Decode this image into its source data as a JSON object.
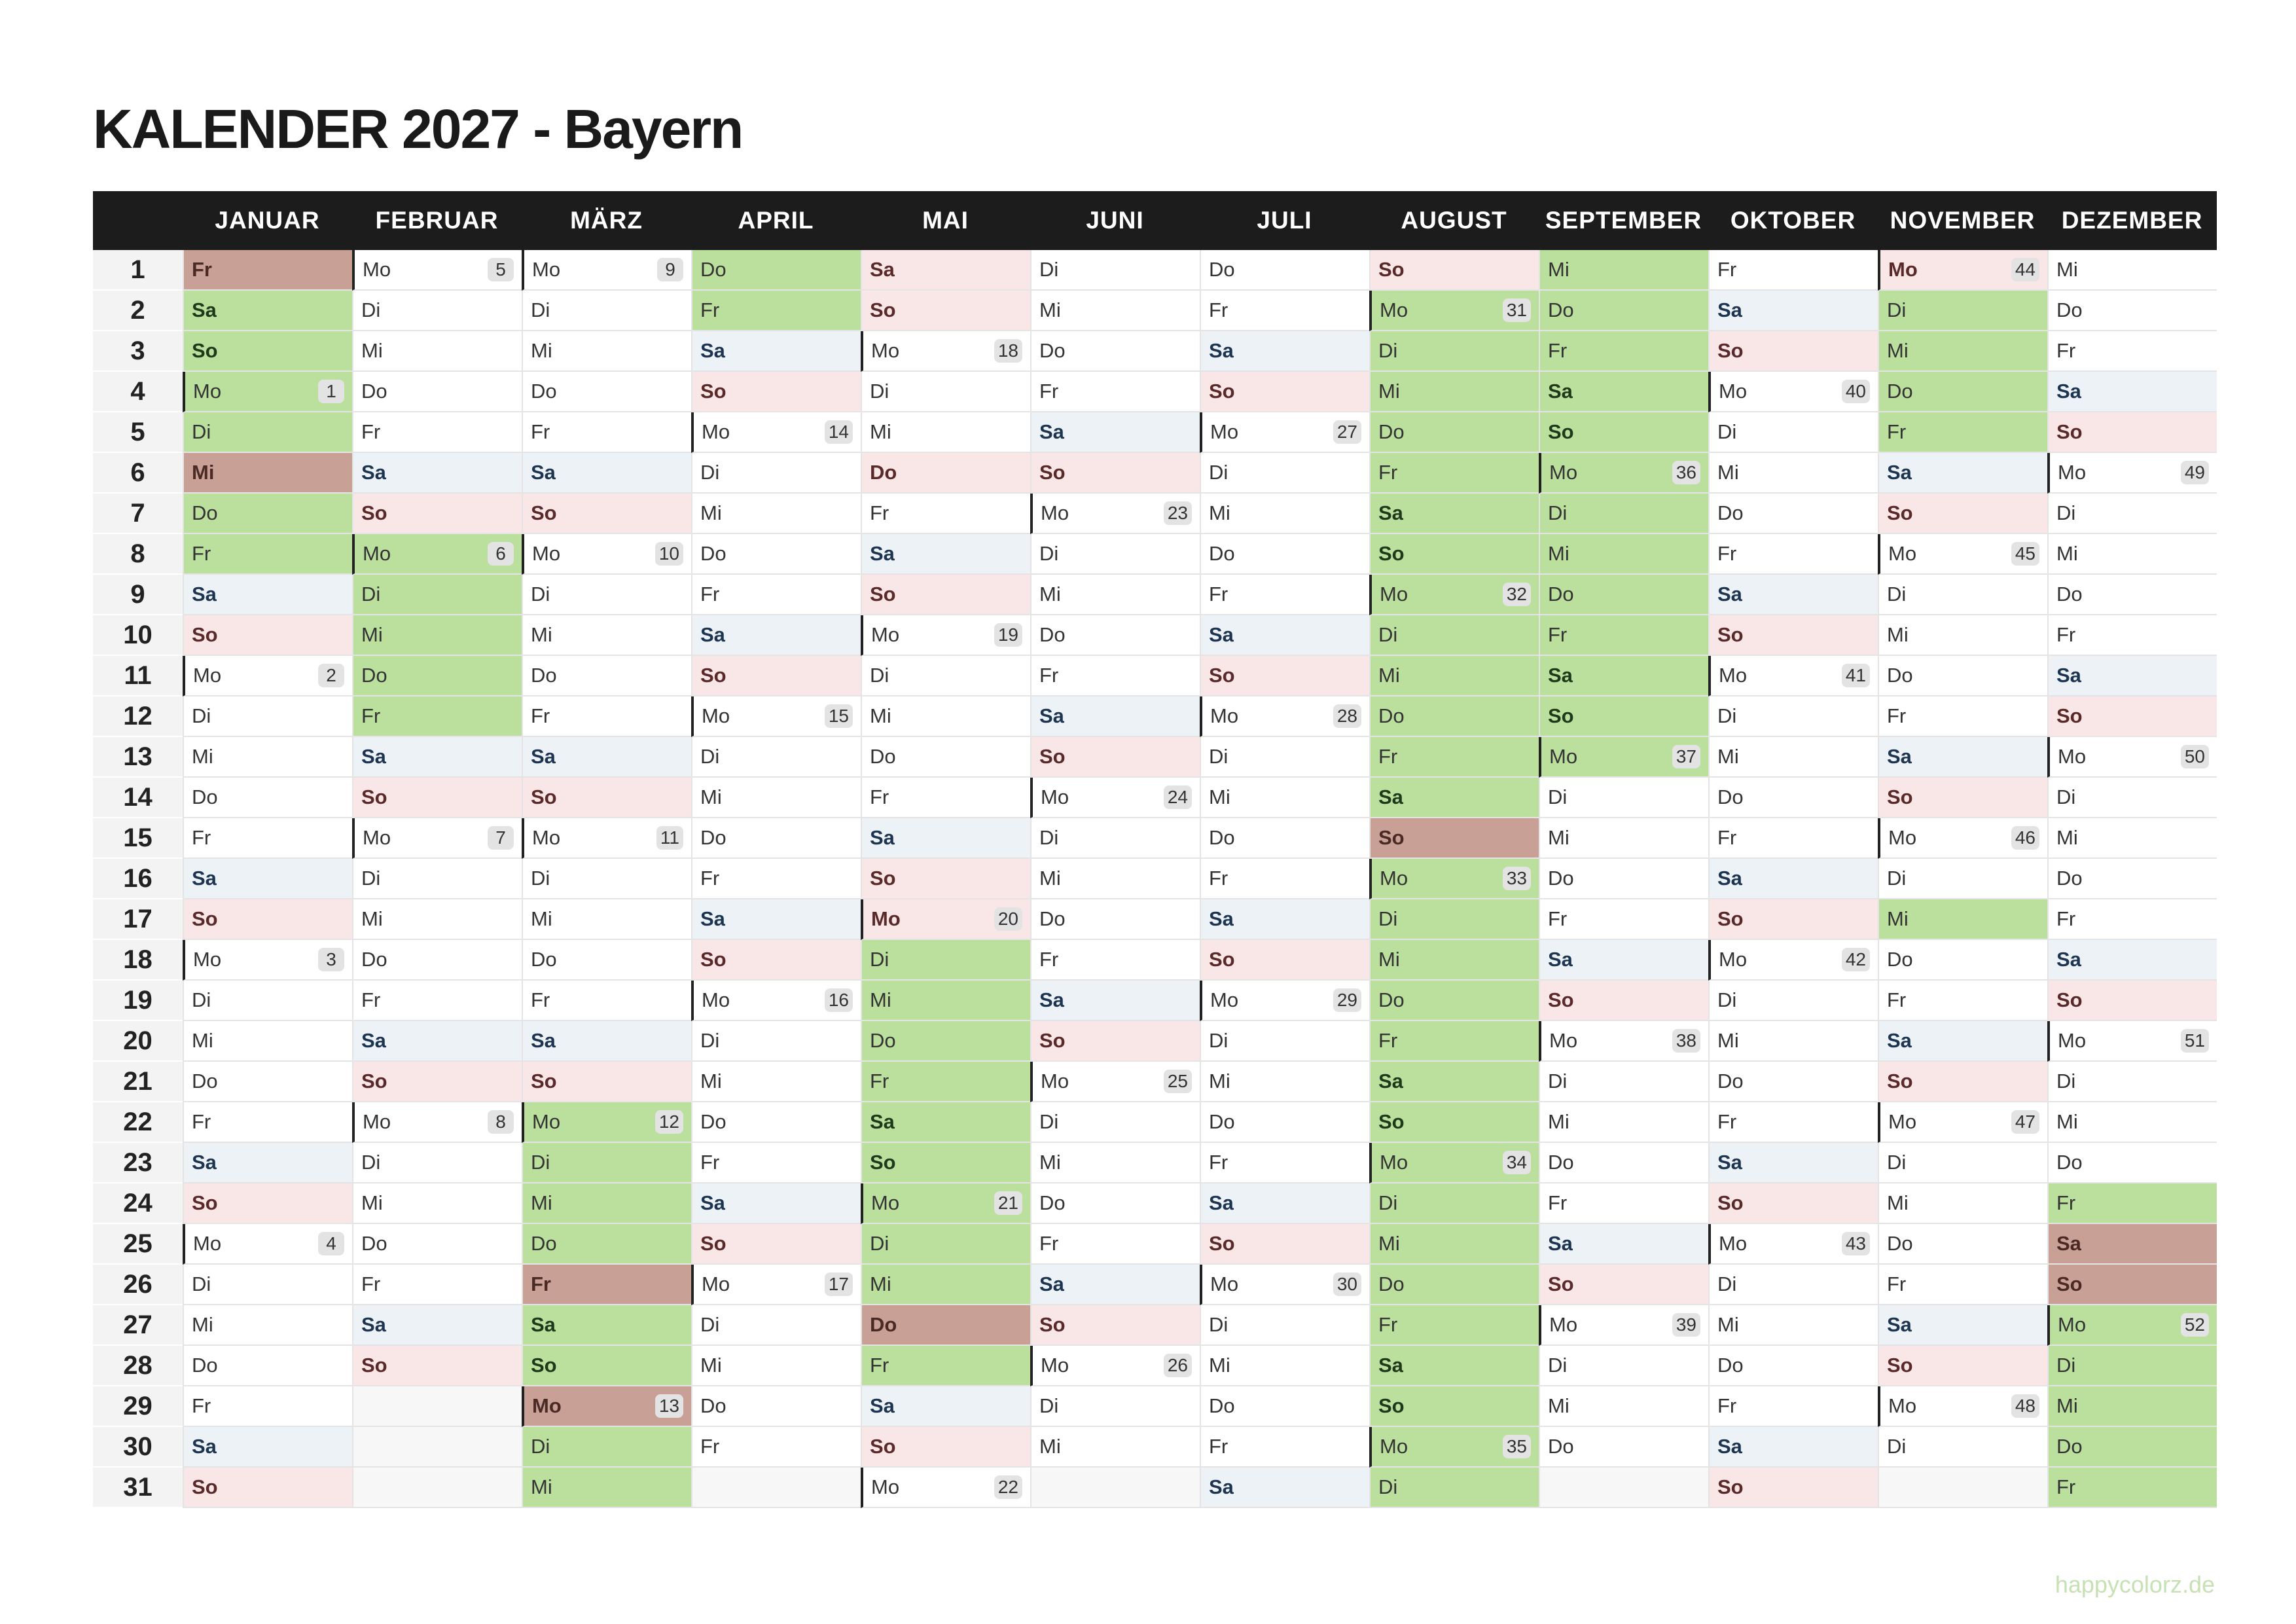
{
  "title": "KALENDER 2027 - Bayern",
  "days": [
    1,
    2,
    3,
    4,
    5,
    6,
    7,
    8,
    9,
    10,
    11,
    12,
    13,
    14,
    15,
    16,
    17,
    18,
    19,
    20,
    21,
    22,
    23,
    24,
    25,
    26,
    27,
    28,
    29,
    30,
    31
  ],
  "months": [
    {
      "name": "JANUAR",
      "cells": [
        "Fr",
        "Sa",
        "So",
        {
          "day": "Mo",
          "week": 1
        },
        "Di",
        "Mi",
        "Do",
        "Fr",
        "Sa",
        "So",
        {
          "day": "Mo",
          "week": 2
        },
        "Di",
        "Mi",
        "Do",
        "Fr",
        "Sa",
        "So",
        {
          "day": "Mo",
          "week": 3
        },
        "Di",
        "Mi",
        "Do",
        "Fr",
        "Sa",
        "So",
        {
          "day": "Mo",
          "week": 4
        },
        "Di",
        "Mi",
        "Do",
        "Fr",
        "Sa",
        "So"
      ]
    },
    {
      "name": "FEBRUAR",
      "cells": [
        {
          "day": "Mo",
          "week": 5
        },
        "Di",
        "Mi",
        "Do",
        "Fr",
        "Sa",
        "So",
        {
          "day": "Mo",
          "week": 6
        },
        "Di",
        "Mi",
        "Do",
        "Fr",
        "Sa",
        "So",
        {
          "day": "Mo",
          "week": 7
        },
        "Di",
        "Mi",
        "Do",
        "Fr",
        "Sa",
        "So",
        {
          "day": "Mo",
          "week": 8
        },
        "Di",
        "Mi",
        "Do",
        "Fr",
        "Sa",
        "So"
      ]
    },
    {
      "name": "MÄRZ",
      "cells": [
        {
          "day": "Mo",
          "week": 9
        },
        "Di",
        "Mi",
        "Do",
        "Fr",
        "Sa",
        "So",
        {
          "day": "Mo",
          "week": 10
        },
        "Di",
        "Mi",
        "Do",
        "Fr",
        "Sa",
        "So",
        {
          "day": "Mo",
          "week": 11
        },
        "Di",
        "Mi",
        "Do",
        "Fr",
        "Sa",
        "So",
        {
          "day": "Mo",
          "week": 12
        },
        "Di",
        "Mi",
        "Do",
        "Fr",
        "Sa",
        "So",
        {
          "day": "Mo",
          "week": 13
        },
        "Di",
        "Mi"
      ]
    },
    {
      "name": "APRIL",
      "cells": [
        "Do",
        "Fr",
        "Sa",
        "So",
        {
          "day": "Mo",
          "week": 14
        },
        "Di",
        "Mi",
        "Do",
        "Fr",
        "Sa",
        "So",
        {
          "day": "Mo",
          "week": 15
        },
        "Di",
        "Mi",
        "Do",
        "Fr",
        "Sa",
        "So",
        {
          "day": "Mo",
          "week": 16
        },
        "Di",
        "Mi",
        "Do",
        "Fr",
        "Sa",
        "So",
        {
          "day": "Mo",
          "week": 17
        },
        "Di",
        "Mi",
        "Do",
        "Fr"
      ]
    },
    {
      "name": "MAI",
      "cells": [
        "Sa",
        "So",
        {
          "day": "Mo",
          "week": 18
        },
        "Di",
        "Mi",
        "Do",
        "Fr",
        "Sa",
        "So",
        {
          "day": "Mo",
          "week": 19
        },
        "Di",
        "Mi",
        "Do",
        "Fr",
        "Sa",
        "So",
        {
          "day": "Mo",
          "week": 20
        },
        "Di",
        "Mi",
        "Do",
        "Fr",
        "Sa",
        "So",
        {
          "day": "Mo",
          "week": 21
        },
        "Di",
        "Mi",
        "Do",
        "Fr",
        "Sa",
        "So",
        {
          "day": "Mo",
          "week": 22
        }
      ]
    },
    {
      "name": "JUNI",
      "cells": [
        "Di",
        "Mi",
        "Do",
        "Fr",
        "Sa",
        "So",
        {
          "day": "Mo",
          "week": 23
        },
        "Di",
        "Mi",
        "Do",
        "Fr",
        "Sa",
        "So",
        {
          "day": "Mo",
          "week": 24
        },
        "Di",
        "Mi",
        "Do",
        "Fr",
        "Sa",
        "So",
        {
          "day": "Mo",
          "week": 25
        },
        "Di",
        "Mi",
        "Do",
        "Fr",
        "Sa",
        "So",
        {
          "day": "Mo",
          "week": 26
        },
        "Di",
        "Mi"
      ]
    },
    {
      "name": "JULI",
      "cells": [
        "Do",
        "Fr",
        "Sa",
        "So",
        {
          "day": "Mo",
          "week": 27
        },
        "Di",
        "Mi",
        "Do",
        "Fr",
        "Sa",
        "So",
        {
          "day": "Mo",
          "week": 28
        },
        "Di",
        "Mi",
        "Do",
        "Fr",
        "Sa",
        "So",
        {
          "day": "Mo",
          "week": 29
        },
        "Di",
        "Mi",
        "Do",
        "Fr",
        "Sa",
        "So",
        {
          "day": "Mo",
          "week": 30
        },
        "Di",
        "Mi",
        "Do",
        "Fr",
        "Sa"
      ]
    },
    {
      "name": "AUGUST",
      "cells": [
        "So",
        {
          "day": "Mo",
          "week": 31
        },
        "Di",
        "Mi",
        "Do",
        "Fr",
        "Sa",
        "So",
        {
          "day": "Mo",
          "week": 32
        },
        "Di",
        "Mi",
        "Do",
        "Fr",
        "Sa",
        "So",
        {
          "day": "Mo",
          "week": 33
        },
        "Di",
        "Mi",
        "Do",
        "Fr",
        "Sa",
        "So",
        {
          "day": "Mo",
          "week": 34
        },
        "Di",
        "Mi",
        "Do",
        "Fr",
        "Sa",
        "So",
        {
          "day": "Mo",
          "week": 35
        },
        "Di"
      ]
    },
    {
      "name": "SEPTEMBER",
      "cells": [
        "Mi",
        "Do",
        "Fr",
        "Sa",
        "So",
        {
          "day": "Mo",
          "week": 36
        },
        "Di",
        "Mi",
        "Do",
        "Fr",
        "Sa",
        "So",
        {
          "day": "Mo",
          "week": 37
        },
        "Di",
        "Mi",
        "Do",
        "Fr",
        "Sa",
        "So",
        {
          "day": "Mo",
          "week": 38
        },
        "Di",
        "Mi",
        "Do",
        "Fr",
        "Sa",
        "So",
        {
          "day": "Mo",
          "week": 39
        },
        "Di",
        "Mi",
        "Do"
      ]
    },
    {
      "name": "OKTOBER",
      "cells": [
        "Fr",
        "Sa",
        "So",
        {
          "day": "Mo",
          "week": 40
        },
        "Di",
        "Mi",
        "Do",
        "Fr",
        "Sa",
        "So",
        {
          "day": "Mo",
          "week": 41
        },
        "Di",
        "Mi",
        "Do",
        "Fr",
        "Sa",
        "So",
        {
          "day": "Mo",
          "week": 42
        },
        "Di",
        "Mi",
        "Do",
        "Fr",
        "Sa",
        "So",
        {
          "day": "Mo",
          "week": 43
        },
        "Di",
        "Mi",
        "Do",
        "Fr",
        "Sa",
        "So"
      ]
    },
    {
      "name": "NOVEMBER",
      "cells": [
        {
          "day": "Mo",
          "week": 44
        },
        "Di",
        "Mi",
        "Do",
        "Fr",
        "Sa",
        "So",
        {
          "day": "Mo",
          "week": 45
        },
        "Di",
        "Mi",
        "Do",
        "Fr",
        "Sa",
        "So",
        {
          "day": "Mo",
          "week": 46
        },
        "Di",
        "Mi",
        "Do",
        "Fr",
        "Sa",
        "So",
        {
          "day": "Mo",
          "week": 47
        },
        "Di",
        "Mi",
        "Do",
        "Fr",
        "Sa",
        "So",
        {
          "day": "Mo",
          "week": 48
        },
        "Di"
      ]
    },
    {
      "name": "DEZEMBER",
      "cells": [
        "Mi",
        "Do",
        "Fr",
        "Sa",
        "So",
        {
          "day": "Mo",
          "week": 49
        },
        "Di",
        "Mi",
        "Do",
        "Fr",
        "Sa",
        "So",
        {
          "day": "Mo",
          "week": 50
        },
        "Di",
        "Mi",
        "Do",
        "Fr",
        "Sa",
        "So",
        {
          "day": "Mo",
          "week": 51
        },
        "Di",
        "Mi",
        "Do",
        "Fr",
        "Sa",
        "So",
        {
          "day": "Mo",
          "week": 52
        },
        "Di",
        "Mi",
        "Do",
        "Fr"
      ]
    }
  ],
  "footer": "happycolorz.de"
}
